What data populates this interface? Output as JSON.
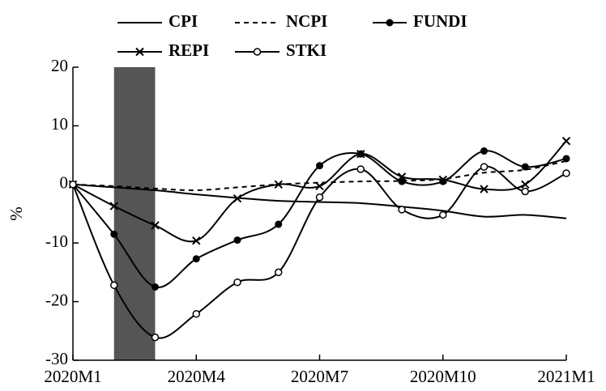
{
  "chart_data": {
    "type": "line",
    "categories": [
      "2020M1",
      null,
      null,
      "2020M4",
      null,
      null,
      "2020M7",
      null,
      null,
      "2020M10",
      null,
      null,
      "2021M1"
    ],
    "series": [
      {
        "name": "CPI",
        "color": "#000000",
        "style": "solid",
        "marker": "none",
        "values": [
          0,
          -0.5,
          -1,
          -1.7,
          -2.3,
          -2.8,
          -3,
          -3.2,
          -3.8,
          -4.5,
          -5.5,
          -5.2,
          -5.8
        ]
      },
      {
        "name": "NCPI",
        "color": "#000000",
        "style": "dashed",
        "marker": "none",
        "values": [
          0,
          -0.3,
          -0.7,
          -1,
          -0.5,
          0,
          0.3,
          0.5,
          0.6,
          0.9,
          2,
          2.5,
          4
        ]
      },
      {
        "name": "FUNDI",
        "color": "#000000",
        "style": "solid",
        "marker": "circle-filled",
        "values": [
          0,
          -8.5,
          -17.5,
          -12.7,
          -9.5,
          -6.8,
          3.2,
          5.2,
          0.5,
          0.5,
          5.7,
          3,
          4.4
        ]
      },
      {
        "name": "REPI",
        "color": "#000000",
        "style": "solid",
        "marker": "x",
        "values": [
          0,
          -3.7,
          -7,
          -9.6,
          -2.4,
          0,
          -0.3,
          5.2,
          1.3,
          0.8,
          -0.8,
          0,
          7.4
        ]
      },
      {
        "name": "STKI",
        "color": "#000000",
        "style": "solid",
        "marker": "circle-open",
        "values": [
          0,
          -17.2,
          -26.1,
          -22.1,
          -16.7,
          -15,
          -2.2,
          2.6,
          -4.3,
          -5.2,
          3,
          -1.2,
          1.9
        ]
      }
    ],
    "y_label": "%",
    "ylim": [
      -30,
      20
    ],
    "yticks": [
      -30,
      -20,
      -10,
      0,
      10,
      20
    ],
    "highlight": {
      "from": 1,
      "to": 2,
      "color": "#555555"
    },
    "grid": false,
    "legend": "top"
  }
}
